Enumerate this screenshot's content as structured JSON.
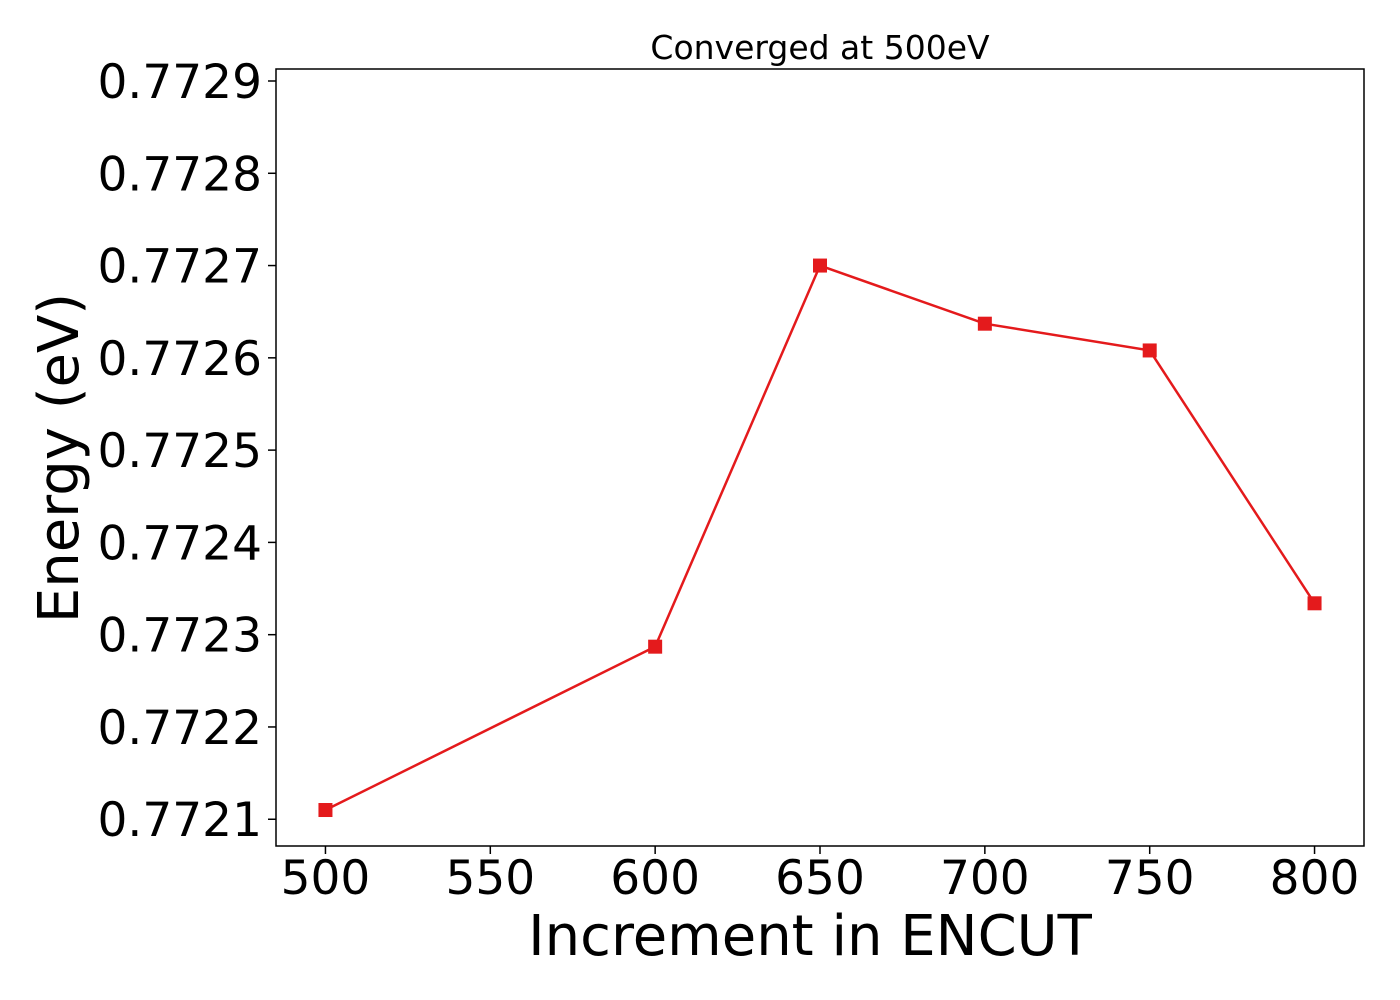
{
  "chart_data": {
    "type": "line",
    "title": "Converged at 500eV",
    "xlabel": "Increment in ENCUT",
    "ylabel": "Energy (eV)",
    "x": [
      500,
      600,
      650,
      700,
      750,
      800
    ],
    "series": [
      {
        "values": [
          0.77211,
          0.772287,
          0.7727,
          0.772637,
          0.772608,
          0.772334
        ],
        "color": "#e41a1c",
        "marker": "square"
      }
    ],
    "xlim": [
      485,
      815
    ],
    "ylim": [
      0.772071,
      0.772913
    ],
    "xticks": [
      500,
      550,
      600,
      650,
      700,
      750,
      800
    ],
    "xtick_labels": [
      "500",
      "550",
      "600",
      "650",
      "700",
      "750",
      "800"
    ],
    "yticks": [
      0.7721,
      0.7722,
      0.7723,
      0.7724,
      0.7725,
      0.7726,
      0.7727,
      0.7728,
      0.7729
    ],
    "ytick_labels": [
      "0.7721",
      "0.7722",
      "0.7723",
      "0.7724",
      "0.7725",
      "0.7726",
      "0.7727",
      "0.7728",
      "0.7729"
    ],
    "grid": false,
    "legend": "none"
  }
}
